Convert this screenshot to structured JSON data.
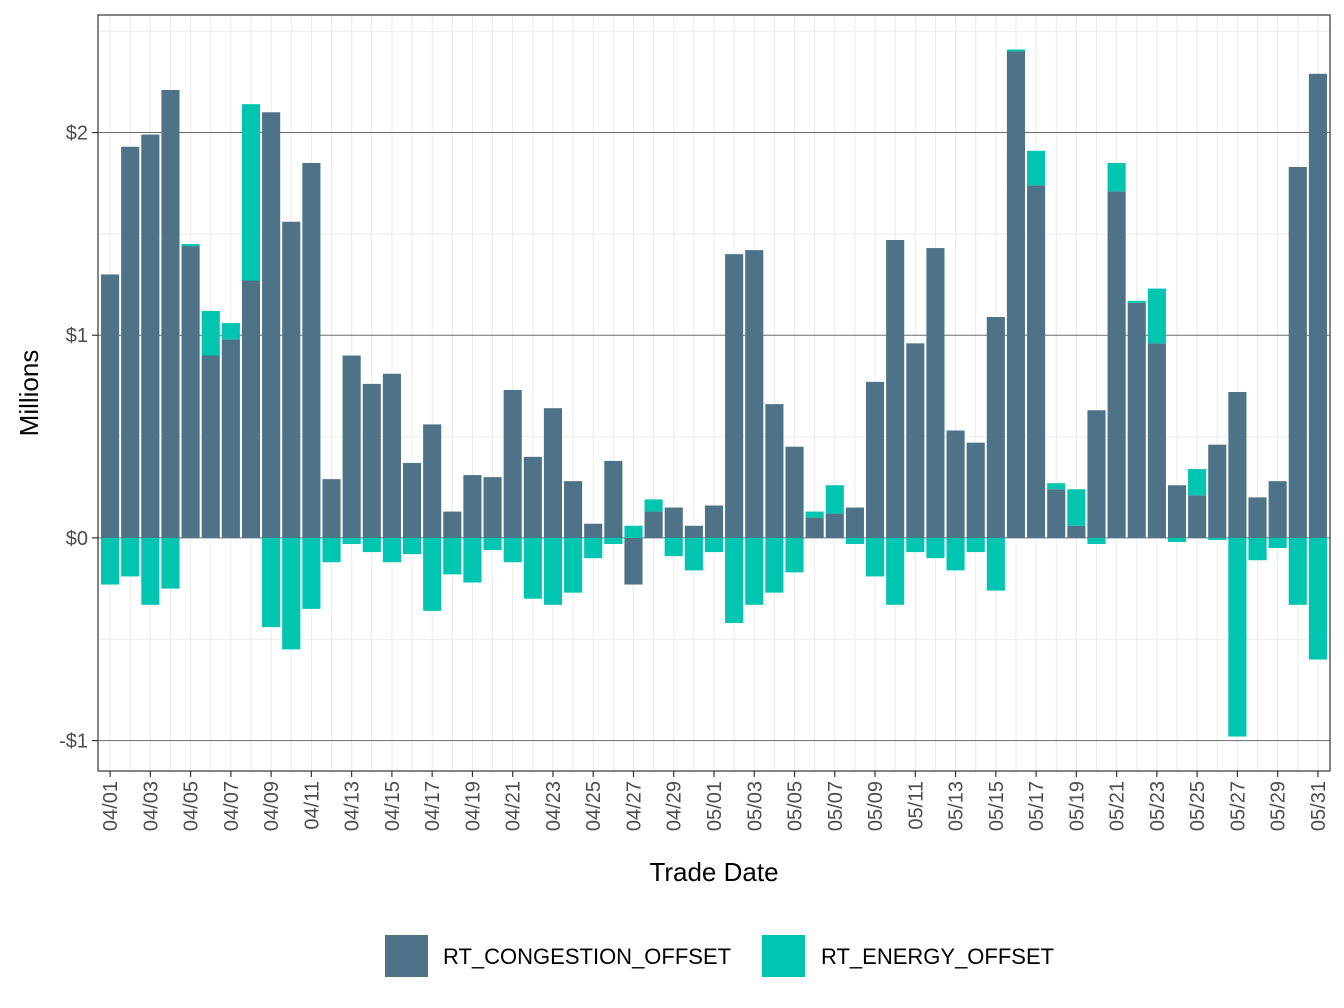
{
  "chart_data": {
    "type": "bar",
    "stacked": true,
    "title": "",
    "xlabel": "Trade Date",
    "ylabel": "Millions",
    "ylim": [
      -1.15,
      2.58
    ],
    "y_ticks": [
      {
        "value": -1,
        "label": "-$1"
      },
      {
        "value": 0,
        "label": "$0"
      },
      {
        "value": 1,
        "label": "$1"
      },
      {
        "value": 2,
        "label": "$2"
      }
    ],
    "grid": true,
    "legend_position": "bottom",
    "categories": [
      "04/01",
      "04/02",
      "04/03",
      "04/04",
      "04/05",
      "04/06",
      "04/07",
      "04/08",
      "04/09",
      "04/10",
      "04/11",
      "04/12",
      "04/13",
      "04/14",
      "04/15",
      "04/16",
      "04/17",
      "04/18",
      "04/19",
      "04/20",
      "04/21",
      "04/22",
      "04/23",
      "04/24",
      "04/25",
      "04/26",
      "04/27",
      "04/28",
      "04/29",
      "04/30",
      "05/01",
      "05/02",
      "05/03",
      "05/04",
      "05/05",
      "05/06",
      "05/07",
      "05/08",
      "05/09",
      "05/10",
      "05/11",
      "05/12",
      "05/13",
      "05/14",
      "05/15",
      "05/16",
      "05/17",
      "05/18",
      "05/19",
      "05/20",
      "05/21",
      "05/22",
      "05/23",
      "05/24",
      "05/25",
      "05/26",
      "05/27",
      "05/28",
      "05/29",
      "05/30",
      "05/31"
    ],
    "x_tick_labels": [
      "04/01",
      "04/03",
      "04/05",
      "04/07",
      "04/09",
      "04/11",
      "04/13",
      "04/15",
      "04/17",
      "04/19",
      "04/21",
      "04/23",
      "04/25",
      "04/27",
      "04/29",
      "05/01",
      "05/03",
      "05/05",
      "05/07",
      "05/09",
      "05/11",
      "05/13",
      "05/15",
      "05/17",
      "05/19",
      "05/21",
      "05/23",
      "05/25",
      "05/27",
      "05/29",
      "05/31"
    ],
    "series": [
      {
        "name": "RT_CONGESTION_OFFSET",
        "color": "#4E7389",
        "values": [
          1.3,
          1.93,
          1.99,
          2.21,
          1.44,
          0.9,
          0.98,
          1.27,
          2.1,
          1.56,
          1.85,
          0.29,
          0.9,
          0.76,
          0.81,
          0.37,
          0.56,
          0.13,
          0.31,
          0.3,
          0.73,
          0.4,
          0.64,
          0.28,
          0.07,
          0.38,
          -0.23,
          0.13,
          0.15,
          0.06,
          0.16,
          1.4,
          1.42,
          0.66,
          0.45,
          0.1,
          0.12,
          0.15,
          0.77,
          1.47,
          0.96,
          1.43,
          0.53,
          0.47,
          1.09,
          2.4,
          1.74,
          0.24,
          0.06,
          0.63,
          1.71,
          1.16,
          0.96,
          0.26,
          0.21,
          0.46,
          0.72,
          0.2,
          0.28,
          1.83,
          2.29
        ]
      },
      {
        "name": "RT_ENERGY_OFFSET",
        "color": "#00C5B1",
        "values": [
          -0.23,
          -0.19,
          -0.33,
          -0.25,
          0.01,
          0.22,
          0.08,
          0.87,
          -0.44,
          -0.55,
          -0.35,
          -0.12,
          -0.03,
          -0.07,
          -0.12,
          -0.08,
          -0.36,
          -0.18,
          -0.22,
          -0.06,
          -0.12,
          -0.3,
          -0.33,
          -0.27,
          -0.1,
          -0.03,
          0.06,
          0.06,
          -0.09,
          -0.16,
          -0.07,
          -0.42,
          -0.33,
          -0.27,
          -0.17,
          0.03,
          0.14,
          -0.03,
          -0.19,
          -0.33,
          -0.07,
          -0.1,
          -0.16,
          -0.07,
          -0.26,
          0.01,
          0.17,
          0.03,
          0.18,
          -0.03,
          0.14,
          0.01,
          0.27,
          -0.02,
          0.13,
          -0.01,
          -0.98,
          -0.11,
          -0.05,
          -0.33,
          -0.6
        ]
      }
    ]
  }
}
